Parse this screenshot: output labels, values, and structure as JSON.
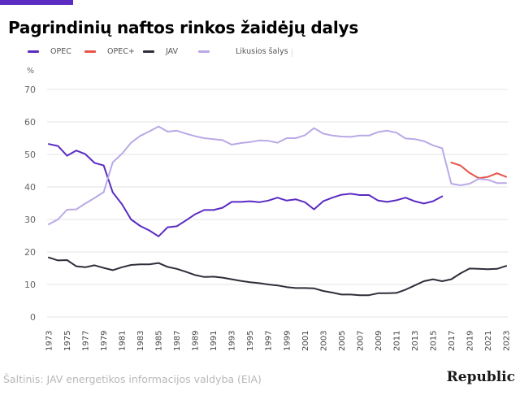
{
  "page": {
    "title": "Pagrindinių naftos rinkos žaidėjų dalys",
    "source": "Šaltinis: JAV energetikos informacijos valdyba (EIA)",
    "brand": "Republic",
    "accent_color": "#5b2bc2"
  },
  "chart_data": {
    "type": "line",
    "title": "Pagrindinių naftos rinkos žaidėjų dalys",
    "ylabel": "%",
    "xlabel": "",
    "xlim": [
      1973,
      2023
    ],
    "ylim": [
      0,
      70
    ],
    "y_ticks": [
      0,
      10,
      20,
      30,
      40,
      50,
      60,
      70
    ],
    "x_ticks": [
      1973,
      1975,
      1977,
      1979,
      1981,
      1983,
      1985,
      1987,
      1989,
      1991,
      1993,
      1995,
      1997,
      1999,
      2001,
      2003,
      2005,
      2007,
      2009,
      2011,
      2013,
      2015,
      2017,
      2019,
      2021,
      2023
    ],
    "grid": "horizontal",
    "legend_position": "top-left",
    "series": [
      {
        "name": "OPEC",
        "color": "#5b2bc2",
        "x": [
          1973,
          1974,
          1975,
          1976,
          1977,
          1978,
          1979,
          1980,
          1981,
          1982,
          1983,
          1984,
          1985,
          1986,
          1987,
          1988,
          1989,
          1990,
          1991,
          1992,
          1993,
          1994,
          1995,
          1996,
          1997,
          1998,
          1999,
          2000,
          2001,
          2002,
          2003,
          2004,
          2005,
          2006,
          2007,
          2008,
          2009,
          2010,
          2011,
          2012,
          2013,
          2014,
          2015,
          2016
        ],
        "values": [
          53.2,
          52.6,
          49.6,
          51.2,
          50.1,
          47.4,
          46.6,
          38.3,
          34.7,
          30.0,
          28.0,
          26.6,
          24.8,
          27.6,
          27.9,
          29.7,
          31.6,
          32.9,
          32.9,
          33.6,
          35.4,
          35.4,
          35.6,
          35.3,
          35.8,
          36.7,
          35.8,
          36.2,
          35.3,
          33.1,
          35.6,
          36.7,
          37.6,
          37.9,
          37.5,
          37.5,
          35.8,
          35.4,
          35.9,
          36.7,
          35.6,
          34.9,
          35.6,
          37.1
        ]
      },
      {
        "name": "OPEC+",
        "color": "#e8534a",
        "x": [
          2017,
          2018,
          2019,
          2020,
          2021,
          2022,
          2023
        ],
        "values": [
          47.5,
          46.6,
          44.3,
          42.7,
          43.1,
          44.2,
          43.1
        ]
      },
      {
        "name": "JAV",
        "color": "#2e2e3a",
        "x": [
          1973,
          1974,
          1975,
          1976,
          1977,
          1978,
          1979,
          1980,
          1981,
          1982,
          1983,
          1984,
          1985,
          1986,
          1987,
          1988,
          1989,
          1990,
          1991,
          1992,
          1993,
          1994,
          1995,
          1996,
          1997,
          1998,
          1999,
          2000,
          2001,
          2002,
          2003,
          2004,
          2005,
          2006,
          2007,
          2008,
          2009,
          2010,
          2011,
          2012,
          2013,
          2014,
          2015,
          2016,
          2017,
          2018,
          2019,
          2020,
          2021,
          2022,
          2023
        ],
        "values": [
          18.3,
          17.4,
          17.5,
          15.6,
          15.3,
          15.9,
          15.1,
          14.4,
          15.3,
          16.0,
          16.2,
          16.2,
          16.6,
          15.4,
          14.8,
          13.9,
          12.9,
          12.3,
          12.4,
          12.1,
          11.6,
          11.1,
          10.7,
          10.4,
          10.0,
          9.7,
          9.2,
          8.9,
          8.9,
          8.8,
          8.0,
          7.5,
          6.9,
          6.9,
          6.7,
          6.7,
          7.3,
          7.3,
          7.4,
          8.4,
          9.7,
          11.0,
          11.6,
          11.0,
          11.6,
          13.4,
          14.9,
          14.8,
          14.7,
          14.8,
          15.7
        ]
      },
      {
        "name": "Likusios šalys",
        "color": "#b9a9e6",
        "x": [
          1973,
          1974,
          1975,
          1976,
          1977,
          1978,
          1979,
          1980,
          1981,
          1982,
          1983,
          1984,
          1985,
          1986,
          1987,
          1988,
          1989,
          1990,
          1991,
          1992,
          1993,
          1994,
          1995,
          1996,
          1997,
          1998,
          1999,
          2000,
          2001,
          2002,
          2003,
          2004,
          2005,
          2006,
          2007,
          2008,
          2009,
          2010,
          2011,
          2012,
          2013,
          2014,
          2015,
          2016,
          2017,
          2018,
          2019,
          2020,
          2021,
          2022,
          2023
        ],
        "values": [
          28.5,
          30.0,
          33.0,
          33.1,
          34.9,
          36.6,
          38.4,
          47.6,
          50.2,
          53.6,
          55.7,
          57.1,
          58.6,
          57.0,
          57.3,
          56.4,
          55.6,
          55.0,
          54.7,
          54.4,
          53.0,
          53.5,
          53.8,
          54.3,
          54.2,
          53.6,
          55.0,
          55.0,
          55.9,
          58.1,
          56.4,
          55.8,
          55.5,
          55.4,
          55.8,
          55.8,
          56.9,
          57.3,
          56.7,
          54.9,
          54.7,
          54.1,
          52.8,
          51.9,
          41.0,
          40.5,
          41.0,
          42.5,
          42.2,
          41.2,
          41.2
        ]
      }
    ]
  }
}
